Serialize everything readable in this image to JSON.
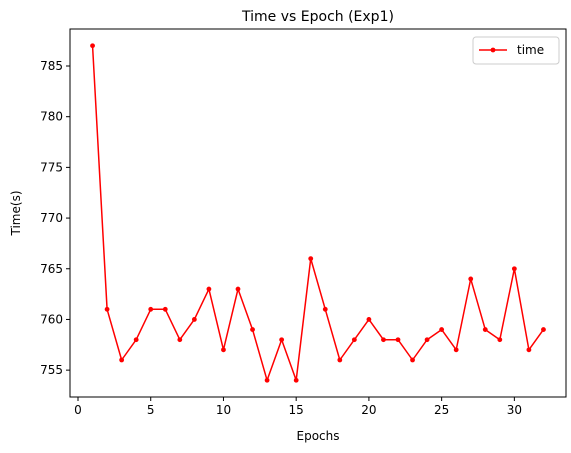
{
  "chart_data": {
    "type": "line",
    "title": "Time vs Epoch (Exp1)",
    "xlabel": "Epochs",
    "ylabel": "Time(s)",
    "xlim": [
      -0.55,
      33.55
    ],
    "ylim": [
      752.35,
      788.65
    ],
    "xticks": [
      0,
      5,
      10,
      15,
      20,
      25,
      30
    ],
    "yticks": [
      755,
      760,
      765,
      770,
      775,
      780,
      785
    ],
    "grid": false,
    "legend_position": "top-right",
    "series": [
      {
        "name": "time",
        "color": "#ff0000",
        "marker": "dot",
        "x": [
          1,
          2,
          3,
          4,
          5,
          6,
          7,
          8,
          9,
          10,
          11,
          12,
          13,
          14,
          15,
          16,
          17,
          18,
          19,
          20,
          21,
          22,
          23,
          24,
          25,
          26,
          27,
          28,
          29,
          30,
          31,
          32
        ],
        "y": [
          787,
          761,
          756,
          758,
          761,
          761,
          758,
          760,
          763,
          757,
          763,
          759,
          754,
          758,
          754,
          766,
          761,
          756,
          758,
          760,
          758,
          758,
          756,
          758,
          759,
          757,
          764,
          759,
          758,
          765,
          757,
          759
        ]
      }
    ]
  }
}
